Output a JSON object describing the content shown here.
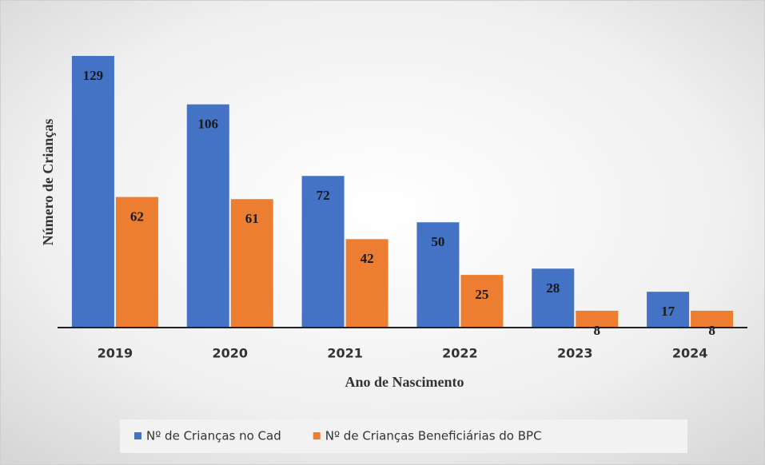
{
  "chart_data": {
    "type": "bar",
    "x_label": "Ano de Nascimento",
    "y_label": "Número de Crianças",
    "categories": [
      "2019",
      "2020",
      "2021",
      "2022",
      "2023",
      "2024"
    ],
    "series": [
      {
        "name": "Nº de Crianças no Cad",
        "color": "#4472c4",
        "values": [
          129,
          106,
          72,
          50,
          28,
          17
        ]
      },
      {
        "name": "Nº de Crianças Beneficiárias do BPC",
        "color": "#ed7d31",
        "values": [
          62,
          61,
          42,
          25,
          8,
          8
        ]
      }
    ],
    "legend": "bottom"
  }
}
